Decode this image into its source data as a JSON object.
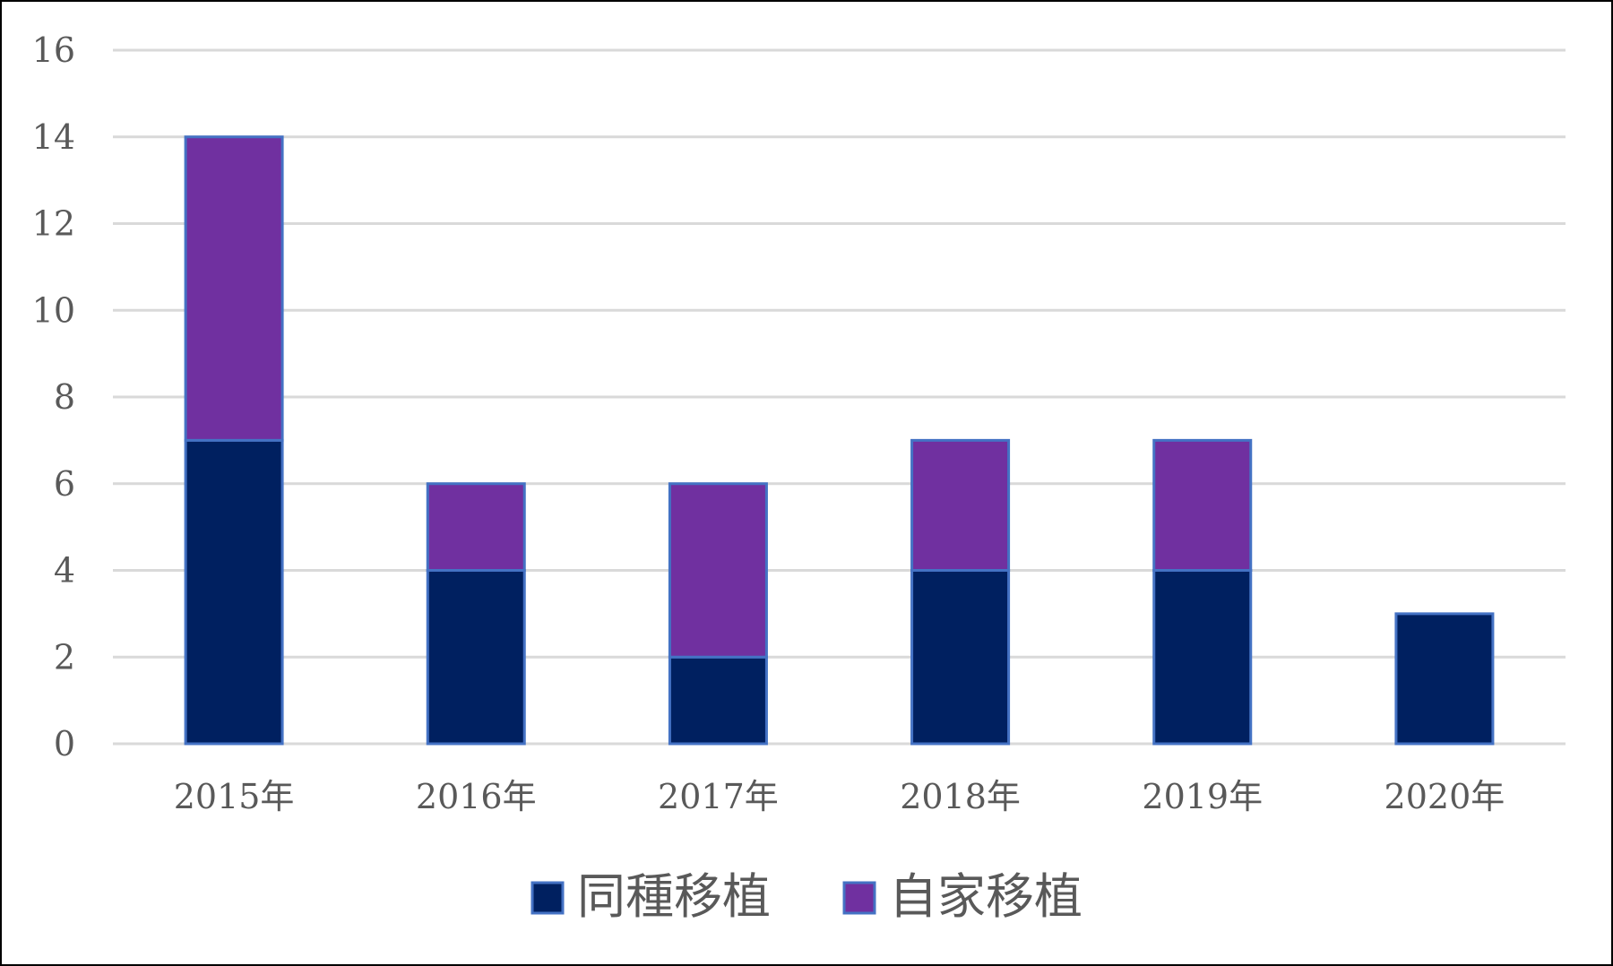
{
  "chart_data": {
    "type": "bar",
    "stacked": true,
    "categories": [
      "2015年",
      "2016年",
      "2017年",
      "2018年",
      "2019年",
      "2020年"
    ],
    "series": [
      {
        "name": "同種移植",
        "values": [
          7,
          4,
          2,
          4,
          4,
          3
        ],
        "color": "#002060"
      },
      {
        "name": "自家移植",
        "values": [
          7,
          2,
          4,
          3,
          3,
          0
        ],
        "color": "#7030A0"
      }
    ],
    "bar_outline_color": "#4472C4",
    "gridline_color": "#D9D9D9",
    "ylim": [
      0,
      16
    ],
    "yticks": [
      "0",
      "2",
      "4",
      "6",
      "8",
      "10",
      "12",
      "14",
      "16"
    ],
    "grid": true,
    "legend_position": "bottom",
    "title": "",
    "xlabel": "",
    "ylabel": ""
  }
}
